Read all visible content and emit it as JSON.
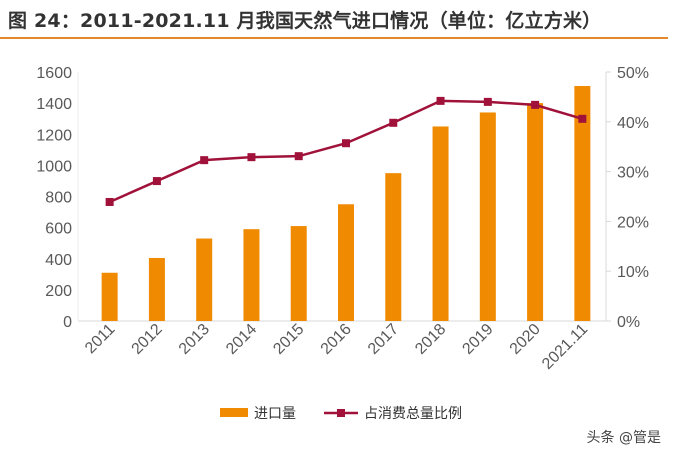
{
  "title": "图 24：2011-2021.11 月我国天然气进口情况（单位：亿立方米）",
  "watermark": "头条 @管是",
  "colors": {
    "bar": "#f08a00",
    "line": "#a0123a",
    "title_rule": "#e3892a"
  },
  "chart_data": {
    "type": "bar+line",
    "categories": [
      "2011",
      "2012",
      "2013",
      "2014",
      "2015",
      "2016",
      "2017",
      "2018",
      "2019",
      "2020",
      "2021.11"
    ],
    "series": [
      {
        "name": "进口量",
        "type": "bar",
        "axis": "left",
        "values": [
          310,
          405,
          530,
          590,
          610,
          750,
          950,
          1250,
          1340,
          1400,
          1510
        ]
      },
      {
        "name": "占消费总量比例",
        "type": "line",
        "axis": "right",
        "unit": "%",
        "values": [
          23.9,
          28.1,
          32.3,
          32.9,
          33.1,
          35.7,
          39.8,
          44.2,
          44.0,
          43.4,
          40.6
        ]
      }
    ],
    "left_axis": {
      "ylim": [
        0,
        1600
      ],
      "ticks": [
        "0",
        "200",
        "400",
        "600",
        "800",
        "1000",
        "1200",
        "1400",
        "1600"
      ]
    },
    "right_axis": {
      "ylim": [
        0,
        50
      ],
      "ticks": [
        "0%",
        "10%",
        "20%",
        "30%",
        "40%",
        "50%"
      ]
    },
    "grid": false,
    "legend": "bottom"
  }
}
